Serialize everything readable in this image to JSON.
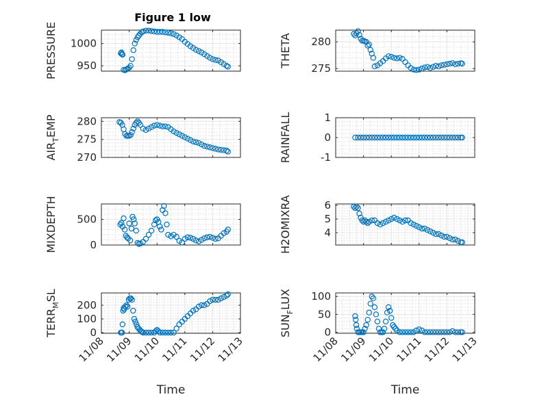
{
  "figure": {
    "title": "Figure 1 low"
  },
  "chart_data": [
    {
      "type": "scatter",
      "title": "Figure 1 low",
      "ylabel": "PRESSURE",
      "xlabel": "",
      "xlim": [
        0,
        5
      ],
      "ylim": [
        938,
        1030
      ],
      "yticks": [
        950,
        1000
      ],
      "show_xticks": false,
      "series": [
        {
          "color": "#0072bd",
          "x": [
            0.7,
            0.72,
            0.74,
            0.76,
            0.8,
            0.85,
            0.9,
            0.95,
            1.0,
            1.05,
            1.1,
            1.15,
            1.2,
            1.25,
            1.3,
            1.35,
            1.4,
            1.45,
            1.5,
            1.6,
            1.7,
            1.8,
            1.9,
            2.0,
            2.1,
            2.2,
            2.3,
            2.4,
            2.5,
            2.6,
            2.7,
            2.8,
            2.9,
            3.0,
            3.1,
            3.2,
            3.3,
            3.4,
            3.5,
            3.6,
            3.7,
            3.8,
            3.9,
            4.0,
            4.1,
            4.2,
            4.3,
            4.4,
            4.5,
            4.55
          ],
          "y": [
            978,
            980,
            976,
            975,
            941,
            940,
            942,
            944,
            946,
            950,
            965,
            985,
            1000,
            1008,
            1014,
            1018,
            1022,
            1025,
            1027,
            1029,
            1029,
            1028,
            1027,
            1026,
            1026,
            1026,
            1025,
            1024,
            1023,
            1021,
            1018,
            1014,
            1010,
            1004,
            999,
            994,
            990,
            986,
            983,
            980,
            976,
            972,
            968,
            965,
            963,
            962,
            958,
            954,
            950,
            948
          ]
        }
      ]
    },
    {
      "type": "scatter",
      "ylabel": "THETA",
      "xlabel": "",
      "xlim": [
        0,
        5
      ],
      "ylim": [
        274.5,
        282.2
      ],
      "yticks": [
        275,
        280
      ],
      "show_xticks": false,
      "series": [
        {
          "color": "#0072bd",
          "x": [
            0.65,
            0.7,
            0.75,
            0.8,
            0.85,
            0.9,
            0.95,
            1.0,
            1.05,
            1.1,
            1.15,
            1.2,
            1.25,
            1.3,
            1.35,
            1.4,
            1.5,
            1.6,
            1.7,
            1.8,
            1.9,
            2.0,
            2.1,
            2.2,
            2.3,
            2.4,
            2.5,
            2.6,
            2.7,
            2.8,
            2.9,
            3.0,
            3.1,
            3.2,
            3.3,
            3.4,
            3.5,
            3.6,
            3.7,
            3.8,
            3.9,
            4.0,
            4.1,
            4.2,
            4.3,
            4.4,
            4.5,
            4.55
          ],
          "y": [
            281.5,
            281.2,
            281.6,
            282.0,
            281.3,
            280.6,
            280.2,
            280.2,
            280.1,
            280.0,
            279.3,
            279.5,
            278.5,
            277.8,
            277.0,
            275.4,
            275.6,
            276.0,
            276.4,
            276.9,
            277.3,
            277.2,
            277.0,
            276.9,
            277.0,
            276.8,
            276.2,
            275.6,
            275.1,
            274.8,
            274.7,
            274.8,
            275.0,
            275.2,
            275.3,
            275.1,
            275.3,
            275.5,
            275.4,
            275.6,
            275.7,
            275.8,
            275.9,
            276.0,
            275.8,
            275.9,
            276.0,
            275.9
          ]
        }
      ]
    },
    {
      "type": "scatter",
      "ylabel": "AIR_TEMP",
      "ylabel_main": "AIR",
      "ylabel_sub": "T",
      "ylabel_rest": "EMP",
      "xlabel": "",
      "xlim": [
        0,
        5
      ],
      "ylim": [
        270,
        281
      ],
      "yticks": [
        270,
        275,
        280
      ],
      "show_xticks": false,
      "series": [
        {
          "color": "#0072bd",
          "x": [
            0.65,
            0.7,
            0.75,
            0.8,
            0.85,
            0.9,
            0.95,
            1.0,
            1.05,
            1.1,
            1.15,
            1.2,
            1.25,
            1.3,
            1.35,
            1.4,
            1.5,
            1.6,
            1.7,
            1.8,
            1.9,
            2.0,
            2.1,
            2.2,
            2.3,
            2.4,
            2.5,
            2.6,
            2.7,
            2.8,
            2.9,
            3.0,
            3.1,
            3.2,
            3.3,
            3.4,
            3.5,
            3.6,
            3.7,
            3.8,
            3.9,
            4.0,
            4.1,
            4.2,
            4.3,
            4.4,
            4.5,
            4.55
          ],
          "y": [
            279.8,
            279.6,
            279.0,
            277.8,
            276.5,
            276.0,
            276.0,
            276.0,
            276.2,
            277.0,
            278.0,
            279.0,
            279.6,
            280.0,
            279.6,
            279.0,
            278.0,
            277.6,
            278.0,
            278.4,
            278.8,
            279.0,
            278.8,
            278.6,
            278.6,
            278.4,
            277.8,
            277.2,
            276.8,
            276.4,
            276.0,
            275.6,
            275.2,
            274.8,
            274.4,
            274.2,
            274.0,
            273.6,
            273.2,
            273.0,
            272.8,
            272.6,
            272.4,
            272.2,
            272.1,
            272.0,
            271.9,
            271.6
          ]
        }
      ]
    },
    {
      "type": "scatter",
      "ylabel": "RAINFALL",
      "xlabel": "",
      "xlim": [
        0,
        5
      ],
      "ylim": [
        -1,
        1
      ],
      "yticks": [
        -1,
        0,
        1
      ],
      "show_xticks": false,
      "series": [
        {
          "color": "#0072bd",
          "x": [
            0.7,
            0.8,
            0.9,
            1.0,
            1.1,
            1.2,
            1.3,
            1.4,
            1.5,
            1.6,
            1.7,
            1.8,
            1.9,
            2.0,
            2.1,
            2.2,
            2.3,
            2.4,
            2.5,
            2.6,
            2.7,
            2.8,
            2.9,
            3.0,
            3.1,
            3.2,
            3.3,
            3.4,
            3.5,
            3.6,
            3.7,
            3.8,
            3.9,
            4.0,
            4.1,
            4.2,
            4.3,
            4.4,
            4.5,
            4.55
          ],
          "y": [
            0,
            0,
            0,
            0,
            0,
            0,
            0,
            0,
            0,
            0,
            0,
            0,
            0,
            0,
            0,
            0,
            0,
            0,
            0,
            0,
            0,
            0,
            0,
            0,
            0,
            0,
            0,
            0,
            0,
            0,
            0,
            0,
            0,
            0,
            0,
            0,
            0,
            0,
            0,
            0
          ]
        }
      ]
    },
    {
      "type": "scatter",
      "ylabel": "MIXDEPTH",
      "xlabel": "",
      "xlim": [
        0,
        5
      ],
      "ylim": [
        0,
        800
      ],
      "yticks": [
        0,
        500
      ],
      "show_xticks": false,
      "series": [
        {
          "color": "#0072bd",
          "x": [
            0.68,
            0.72,
            0.76,
            0.8,
            0.84,
            0.88,
            0.92,
            0.96,
            1.0,
            1.04,
            1.08,
            1.12,
            1.16,
            1.2,
            1.25,
            1.3,
            1.35,
            1.4,
            1.5,
            1.6,
            1.7,
            1.8,
            1.9,
            1.95,
            2.0,
            2.05,
            2.1,
            2.15,
            2.2,
            2.25,
            2.3,
            2.35,
            2.4,
            2.5,
            2.6,
            2.7,
            2.8,
            2.9,
            3.0,
            3.1,
            3.2,
            3.3,
            3.4,
            3.5,
            3.6,
            3.7,
            3.8,
            3.9,
            4.0,
            4.1,
            4.2,
            4.3,
            4.4,
            4.5,
            4.55
          ],
          "y": [
            400,
            430,
            360,
            520,
            300,
            180,
            150,
            130,
            420,
            90,
            320,
            550,
            500,
            420,
            280,
            40,
            20,
            30,
            60,
            120,
            200,
            280,
            400,
            480,
            500,
            450,
            360,
            300,
            680,
            760,
            620,
            400,
            200,
            170,
            200,
            160,
            80,
            50,
            120,
            150,
            140,
            120,
            90,
            70,
            100,
            130,
            150,
            160,
            140,
            120,
            130,
            180,
            230,
            260,
            300
          ]
        }
      ]
    },
    {
      "type": "scatter",
      "ylabel": "H2OMIXRA",
      "xlabel": "",
      "xlim": [
        0,
        5
      ],
      "ylim": [
        3.1,
        6.1
      ],
      "yticks": [
        4,
        5,
        6
      ],
      "show_xticks": false,
      "series": [
        {
          "color": "#0072bd",
          "x": [
            0.65,
            0.7,
            0.75,
            0.8,
            0.85,
            0.9,
            0.95,
            1.0,
            1.05,
            1.1,
            1.15,
            1.2,
            1.3,
            1.4,
            1.5,
            1.6,
            1.7,
            1.8,
            1.9,
            2.0,
            2.1,
            2.2,
            2.3,
            2.4,
            2.5,
            2.6,
            2.7,
            2.8,
            2.9,
            3.0,
            3.1,
            3.2,
            3.3,
            3.4,
            3.5,
            3.6,
            3.7,
            3.8,
            3.9,
            4.0,
            4.1,
            4.2,
            4.3,
            4.4,
            4.5,
            4.55
          ],
          "y": [
            5.9,
            5.8,
            5.9,
            5.8,
            5.4,
            5.1,
            4.9,
            4.8,
            4.9,
            4.8,
            4.7,
            4.8,
            4.9,
            4.9,
            4.7,
            4.6,
            4.7,
            4.8,
            4.9,
            5.0,
            5.1,
            5.0,
            4.9,
            4.8,
            4.9,
            4.9,
            4.7,
            4.6,
            4.5,
            4.4,
            4.3,
            4.3,
            4.2,
            4.1,
            4.0,
            3.9,
            3.9,
            3.8,
            3.7,
            3.7,
            3.6,
            3.5,
            3.5,
            3.4,
            3.3,
            3.3
          ]
        }
      ]
    },
    {
      "type": "scatter",
      "ylabel": "TERR_MSL",
      "ylabel_main": "TERR",
      "ylabel_sub": "M",
      "ylabel_rest": "SL",
      "xlabel": "Time",
      "xlim": [
        0,
        5
      ],
      "ylim": [
        -5,
        290
      ],
      "yticks": [
        0,
        100,
        200
      ],
      "xticks": [
        0,
        1,
        2,
        3,
        4,
        5
      ],
      "xticklabels": [
        "11/08",
        "11/09",
        "11/10",
        "11/11",
        "11/12",
        "11/13"
      ],
      "show_xticks": true,
      "series": [
        {
          "color": "#0072bd",
          "x": [
            0.7,
            0.72,
            0.74,
            0.76,
            0.78,
            0.8,
            0.82,
            0.86,
            0.9,
            0.94,
            0.98,
            1.02,
            1.06,
            1.1,
            1.14,
            1.18,
            1.22,
            1.26,
            1.3,
            1.34,
            1.38,
            1.42,
            1.46,
            1.5,
            1.6,
            1.7,
            1.8,
            1.9,
            1.95,
            2.0,
            2.05,
            2.1,
            2.2,
            2.3,
            2.4,
            2.5,
            2.6,
            2.7,
            2.8,
            2.9,
            3.0,
            3.1,
            3.2,
            3.3,
            3.4,
            3.5,
            3.6,
            3.7,
            3.8,
            3.9,
            4.0,
            4.1,
            4.2,
            4.3,
            4.4,
            4.5,
            4.55
          ],
          "y": [
            0,
            0,
            0,
            60,
            160,
            180,
            170,
            190,
            200,
            190,
            240,
            250,
            250,
            240,
            160,
            100,
            80,
            60,
            40,
            30,
            20,
            10,
            5,
            0,
            0,
            0,
            0,
            0,
            10,
            20,
            10,
            0,
            0,
            0,
            0,
            0,
            0,
            30,
            60,
            80,
            100,
            120,
            140,
            160,
            170,
            190,
            200,
            200,
            210,
            230,
            240,
            240,
            240,
            250,
            260,
            270,
            280
          ]
        }
      ]
    },
    {
      "type": "scatter",
      "ylabel": "SUN_FLUX",
      "ylabel_main": "SUN",
      "ylabel_sub": "F",
      "ylabel_rest": "LUX",
      "xlabel": "Time",
      "xlim": [
        0,
        5
      ],
      "ylim": [
        -3,
        110
      ],
      "yticks": [
        0,
        50,
        100
      ],
      "xticks": [
        0,
        1,
        2,
        3,
        4,
        5
      ],
      "xticklabels": [
        "11/08",
        "11/09",
        "11/10",
        "11/11",
        "11/12",
        "11/13"
      ],
      "show_xticks": true,
      "series": [
        {
          "color": "#0072bd",
          "x": [
            0.7,
            0.72,
            0.74,
            0.76,
            0.8,
            0.85,
            0.9,
            0.95,
            1.0,
            1.05,
            1.1,
            1.15,
            1.2,
            1.25,
            1.3,
            1.35,
            1.4,
            1.45,
            1.5,
            1.55,
            1.6,
            1.65,
            1.7,
            1.75,
            1.8,
            1.85,
            1.9,
            1.95,
            2.0,
            2.05,
            2.1,
            2.15,
            2.2,
            2.3,
            2.4,
            2.5,
            2.6,
            2.7,
            2.8,
            2.9,
            3.0,
            3.1,
            3.2,
            3.3,
            3.4,
            3.5,
            3.6,
            3.7,
            3.8,
            3.9,
            4.0,
            4.1,
            4.2,
            4.3,
            4.4,
            4.5,
            4.55
          ],
          "y": [
            45,
            35,
            20,
            10,
            0,
            0,
            0,
            0,
            0,
            10,
            20,
            35,
            55,
            80,
            100,
            95,
            70,
            50,
            30,
            10,
            0,
            0,
            0,
            10,
            30,
            55,
            70,
            60,
            40,
            20,
            15,
            10,
            5,
            0,
            0,
            0,
            0,
            0,
            0,
            5,
            8,
            5,
            0,
            0,
            0,
            0,
            0,
            0,
            0,
            0,
            0,
            0,
            3,
            0,
            0,
            0,
            0
          ]
        }
      ]
    }
  ]
}
